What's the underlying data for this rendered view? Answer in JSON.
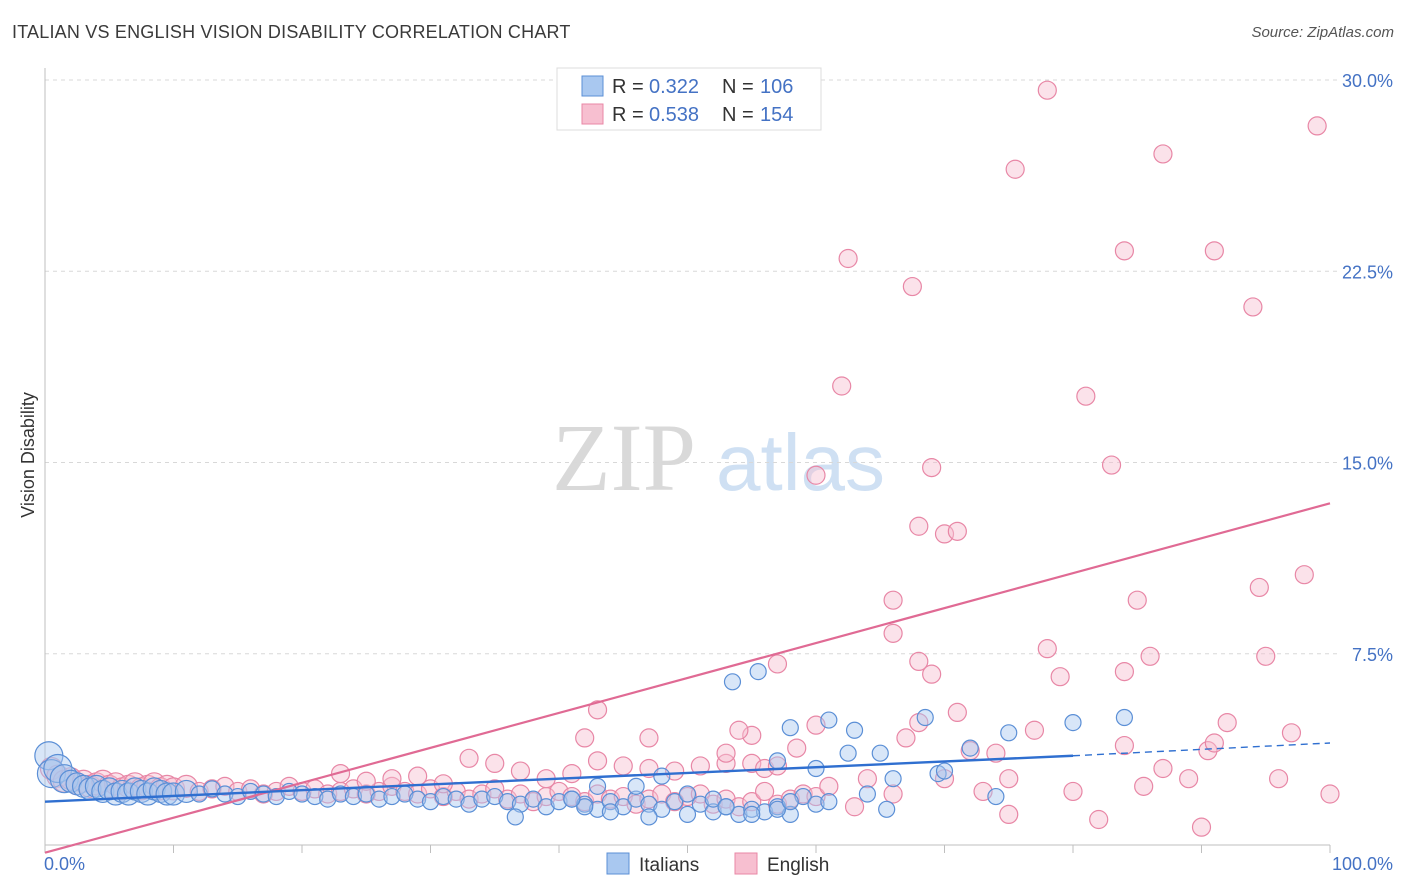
{
  "title": "ITALIAN VS ENGLISH VISION DISABILITY CORRELATION CHART",
  "source": "Source: ZipAtlas.com",
  "watermark": {
    "zip": "ZIP",
    "atlas": "atlas"
  },
  "colors": {
    "italians_fill": "#a9c8f0",
    "italians_stroke": "#5b8fd6",
    "italians_line": "#2f6fd0",
    "english_fill": "#f7bfd0",
    "english_stroke": "#e887a6",
    "english_line": "#e06a94",
    "grid": "#d8d8d8",
    "tick_text": "#4472c4"
  },
  "legend": {
    "rows": [
      {
        "r_label": "R = ",
        "r_value": "0.322",
        "n_label": "N = ",
        "n_value": "106"
      },
      {
        "r_label": "R = ",
        "r_value": "0.538",
        "n_label": "N = ",
        "n_value": "154"
      }
    ]
  },
  "bottom_legend": [
    "Italians",
    "English"
  ],
  "chart_data": {
    "type": "scatter",
    "title": "ITALIAN VS ENGLISH VISION DISABILITY CORRELATION CHART",
    "xlabel": "",
    "ylabel": "Vision Disability",
    "xlim": [
      0,
      100
    ],
    "ylim": [
      0,
      30
    ],
    "x_tick_labels": [
      "0.0%",
      "100.0%"
    ],
    "y_ticks": [
      7.5,
      15.0,
      22.5,
      30.0
    ],
    "y_tick_labels": [
      "7.5%",
      "15.0%",
      "22.5%",
      "30.0%"
    ],
    "grid": true,
    "legend_placement": "top-center",
    "series": [
      {
        "name": "Italians",
        "R": 0.322,
        "N": 106,
        "trend": {
          "x": [
            0,
            80,
            100
          ],
          "y": [
            1.7,
            3.5,
            4.0
          ],
          "solid_until_x": 80
        },
        "points": [
          [
            0.3,
            3.5
          ],
          [
            0.5,
            2.8
          ],
          [
            1,
            3.0
          ],
          [
            1.5,
            2.6
          ],
          [
            2,
            2.5
          ],
          [
            2.5,
            2.4
          ],
          [
            3,
            2.3
          ],
          [
            3.5,
            2.2
          ],
          [
            4,
            2.3
          ],
          [
            4.5,
            2.1
          ],
          [
            5,
            2.2
          ],
          [
            5.5,
            2.0
          ],
          [
            6,
            2.1
          ],
          [
            6.5,
            2.0
          ],
          [
            7,
            2.2
          ],
          [
            7.5,
            2.1
          ],
          [
            8,
            2.0
          ],
          [
            8.5,
            2.2
          ],
          [
            9,
            2.1
          ],
          [
            9.5,
            2.0
          ],
          [
            10,
            2.0
          ],
          [
            11,
            2.1
          ],
          [
            12,
            2.0
          ],
          [
            13,
            2.2
          ],
          [
            14,
            2.0
          ],
          [
            15,
            1.9
          ],
          [
            16,
            2.1
          ],
          [
            17,
            2.0
          ],
          [
            18,
            1.9
          ],
          [
            19,
            2.1
          ],
          [
            20,
            2.0
          ],
          [
            21,
            1.9
          ],
          [
            22,
            1.8
          ],
          [
            23,
            2.0
          ],
          [
            24,
            1.9
          ],
          [
            25,
            2.0
          ],
          [
            26,
            1.8
          ],
          [
            27,
            1.9
          ],
          [
            28,
            2.0
          ],
          [
            29,
            1.8
          ],
          [
            30,
            1.7
          ],
          [
            31,
            1.9
          ],
          [
            32,
            1.8
          ],
          [
            33,
            1.6
          ],
          [
            34,
            1.8
          ],
          [
            35,
            1.9
          ],
          [
            36,
            1.7
          ],
          [
            37,
            1.6
          ],
          [
            38,
            1.8
          ],
          [
            39,
            1.5
          ],
          [
            40,
            1.7
          ],
          [
            41,
            1.8
          ],
          [
            42,
            1.6
          ],
          [
            43,
            1.4
          ],
          [
            44,
            1.7
          ],
          [
            45,
            1.5
          ],
          [
            46,
            1.8
          ],
          [
            47,
            1.6
          ],
          [
            48,
            1.4
          ],
          [
            49,
            1.7
          ],
          [
            50,
            1.2
          ],
          [
            51,
            1.6
          ],
          [
            52,
            1.3
          ],
          [
            53,
            1.5
          ],
          [
            54,
            1.2
          ],
          [
            55,
            1.4
          ],
          [
            56,
            1.3
          ],
          [
            57,
            1.5
          ],
          [
            58,
            1.2
          ],
          [
            59,
            1.9
          ],
          [
            60,
            1.6
          ],
          [
            61,
            1.7
          ],
          [
            36.6,
            1.1
          ],
          [
            42,
            1.5
          ],
          [
            44,
            1.3
          ],
          [
            47,
            1.1
          ],
          [
            48,
            2.7
          ],
          [
            50,
            2.0
          ],
          [
            41,
            1.8
          ],
          [
            43,
            2.3
          ],
          [
            52,
            1.8
          ],
          [
            53,
            1.5
          ],
          [
            55,
            1.2
          ],
          [
            57,
            1.4
          ],
          [
            58,
            1.7
          ],
          [
            46,
            2.3
          ],
          [
            55.5,
            6.8
          ],
          [
            53.5,
            6.4
          ],
          [
            57,
            3.3
          ],
          [
            61,
            4.9
          ],
          [
            62.5,
            3.6
          ],
          [
            63,
            4.5
          ],
          [
            65,
            3.6
          ],
          [
            65.5,
            1.4
          ],
          [
            68.5,
            5.0
          ],
          [
            69.5,
            2.8
          ],
          [
            70,
            2.9
          ],
          [
            58,
            4.6
          ],
          [
            60,
            3.0
          ],
          [
            64,
            2.0
          ],
          [
            72,
            3.8
          ],
          [
            75,
            4.4
          ],
          [
            80,
            4.8
          ],
          [
            84,
            5.0
          ],
          [
            74,
            1.9
          ],
          [
            66,
            2.6
          ]
        ]
      },
      {
        "name": "English",
        "R": 0.538,
        "N": 154,
        "trend": {
          "x": [
            0,
            100
          ],
          "y": [
            -0.3,
            13.4
          ]
        },
        "points": [
          [
            0.5,
            3.0
          ],
          [
            1,
            2.7
          ],
          [
            1.5,
            2.5
          ],
          [
            2,
            2.6
          ],
          [
            2.5,
            2.4
          ],
          [
            3,
            2.5
          ],
          [
            3.5,
            2.3
          ],
          [
            4,
            2.4
          ],
          [
            4.5,
            2.5
          ],
          [
            5,
            2.3
          ],
          [
            5.5,
            2.4
          ],
          [
            6,
            2.2
          ],
          [
            6.5,
            2.3
          ],
          [
            7,
            2.4
          ],
          [
            7.5,
            2.2
          ],
          [
            8,
            2.3
          ],
          [
            8.5,
            2.4
          ],
          [
            9,
            2.2
          ],
          [
            9.5,
            2.3
          ],
          [
            10,
            2.2
          ],
          [
            11,
            2.3
          ],
          [
            12,
            2.1
          ],
          [
            13,
            2.2
          ],
          [
            14,
            2.3
          ],
          [
            15,
            2.1
          ],
          [
            16,
            2.2
          ],
          [
            17,
            2.0
          ],
          [
            18,
            2.1
          ],
          [
            19,
            2.3
          ],
          [
            20,
            2.1
          ],
          [
            21,
            2.2
          ],
          [
            22,
            2.0
          ],
          [
            23,
            2.1
          ],
          [
            24,
            2.2
          ],
          [
            25,
            2.0
          ],
          [
            26,
            2.1
          ],
          [
            27,
            2.3
          ],
          [
            28,
            2.1
          ],
          [
            29,
            2.0
          ],
          [
            30,
            2.2
          ],
          [
            31,
            1.9
          ],
          [
            32,
            2.1
          ],
          [
            33,
            1.8
          ],
          [
            34,
            2.0
          ],
          [
            35,
            2.2
          ],
          [
            36,
            1.8
          ],
          [
            37,
            2.0
          ],
          [
            38,
            1.7
          ],
          [
            39,
            1.9
          ],
          [
            40,
            2.1
          ],
          [
            41,
            1.9
          ],
          [
            42,
            1.7
          ],
          [
            43,
            2.0
          ],
          [
            44,
            1.8
          ],
          [
            45,
            1.9
          ],
          [
            46,
            1.6
          ],
          [
            47,
            1.8
          ],
          [
            48,
            2.0
          ],
          [
            49,
            1.7
          ],
          [
            50,
            1.9
          ],
          [
            51,
            2.0
          ],
          [
            52,
            1.6
          ],
          [
            53,
            1.8
          ],
          [
            54,
            1.5
          ],
          [
            55,
            1.7
          ],
          [
            56,
            2.1
          ],
          [
            57,
            1.6
          ],
          [
            58,
            1.8
          ],
          [
            59,
            2.0
          ],
          [
            60,
            1.9
          ],
          [
            23,
            2.8
          ],
          [
            25,
            2.5
          ],
          [
            27,
            2.6
          ],
          [
            29,
            2.7
          ],
          [
            31,
            2.4
          ],
          [
            33,
            3.4
          ],
          [
            35,
            3.2
          ],
          [
            37,
            2.9
          ],
          [
            39,
            2.6
          ],
          [
            41,
            2.8
          ],
          [
            43,
            3.3
          ],
          [
            45,
            3.1
          ],
          [
            47,
            3.0
          ],
          [
            49,
            2.9
          ],
          [
            51,
            3.1
          ],
          [
            53,
            3.2
          ],
          [
            55,
            3.2
          ],
          [
            43,
            5.3
          ],
          [
            42,
            4.2
          ],
          [
            47,
            4.2
          ],
          [
            55,
            4.3
          ],
          [
            56,
            3.0
          ],
          [
            57,
            3.1
          ],
          [
            60,
            4.7
          ],
          [
            58.5,
            3.8
          ],
          [
            54,
            4.5
          ],
          [
            53,
            3.6
          ],
          [
            61,
            2.3
          ],
          [
            63,
            1.5
          ],
          [
            64,
            2.6
          ],
          [
            66,
            8.3
          ],
          [
            66,
            2.0
          ],
          [
            67,
            4.2
          ],
          [
            68,
            4.8
          ],
          [
            68,
            7.2
          ],
          [
            69,
            6.7
          ],
          [
            70,
            2.6
          ],
          [
            71,
            5.2
          ],
          [
            72,
            3.7
          ],
          [
            73,
            2.1
          ],
          [
            74,
            3.6
          ],
          [
            75,
            1.2
          ],
          [
            75,
            2.6
          ],
          [
            77,
            4.5
          ],
          [
            78,
            7.7
          ],
          [
            79,
            6.6
          ],
          [
            80,
            2.1
          ],
          [
            81,
            17.6
          ],
          [
            82,
            1.0
          ],
          [
            83,
            14.9
          ],
          [
            84,
            3.9
          ],
          [
            84,
            6.8
          ],
          [
            85,
            9.6
          ],
          [
            85.5,
            2.3
          ],
          [
            86,
            7.4
          ],
          [
            87,
            3.0
          ],
          [
            89,
            2.6
          ],
          [
            90,
            0.7
          ],
          [
            90.5,
            3.7
          ],
          [
            91,
            4.0
          ],
          [
            92,
            4.8
          ],
          [
            94.5,
            10.1
          ],
          [
            98,
            10.6
          ],
          [
            100,
            2.0
          ],
          [
            57,
            7.1
          ],
          [
            60,
            14.5
          ],
          [
            66,
            9.6
          ],
          [
            68,
            12.5
          ],
          [
            69,
            14.8
          ],
          [
            70,
            12.2
          ],
          [
            71,
            12.3
          ],
          [
            62,
            18.0
          ],
          [
            62.5,
            23.0
          ],
          [
            67.5,
            21.9
          ],
          [
            75.5,
            26.5
          ],
          [
            78,
            29.6
          ],
          [
            84,
            23.3
          ],
          [
            87,
            27.1
          ],
          [
            91,
            23.3
          ],
          [
            94,
            21.1
          ],
          [
            99,
            28.2
          ],
          [
            95,
            7.4
          ],
          [
            96,
            2.6
          ],
          [
            97,
            4.4
          ]
        ]
      }
    ]
  }
}
